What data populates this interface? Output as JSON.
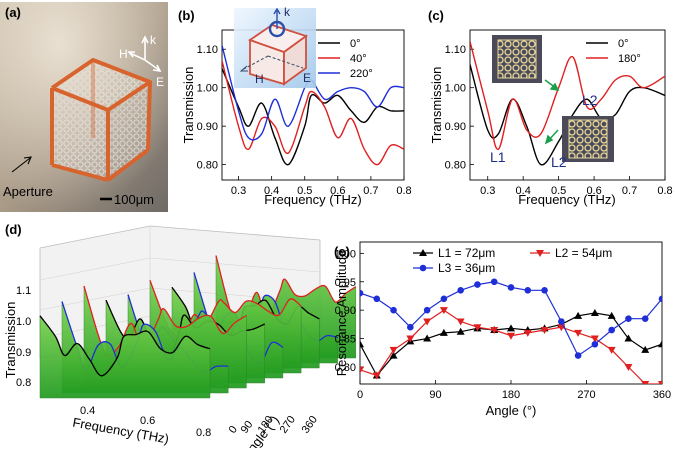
{
  "panels": {
    "a": {
      "label": "(a)",
      "axes": {
        "h": "H",
        "k": "k",
        "e": "E"
      },
      "aperture_label": "Aperture",
      "scale_bar_label": "100μm"
    },
    "d": {
      "label": "(d)",
      "zlabel": "Transmission",
      "xlabel": "Frequency (THz)",
      "ylabel": "Angle (°)",
      "z_ticks": [
        "1.1",
        "1.0",
        "0.9",
        "0.8"
      ],
      "x_ticks": [
        "0.4",
        "0.6",
        "0.8"
      ],
      "angle_ticks": [
        "0",
        "90",
        "180",
        "270",
        "360"
      ]
    }
  },
  "inset_b": {
    "h": "H",
    "k": "k",
    "e": "E"
  },
  "inset_c": {
    "l1": "L1",
    "l2": "L2",
    "l2b": "L2"
  },
  "colors": {
    "black": "#000000",
    "red": "#e02020",
    "blue": "#1f2fd8",
    "green": "#3fae2f"
  },
  "chart_data": [
    {
      "id": "b",
      "label": "(b)",
      "type": "line",
      "xlabel": "Frequency (THz)",
      "ylabel": "Transmission",
      "xlim": [
        0.25,
        0.8
      ],
      "ylim": [
        0.76,
        1.15
      ],
      "xticks": [
        "0.3",
        "0.4",
        "0.5",
        "0.6",
        "0.7",
        "0.8"
      ],
      "yticks": [
        "0.80",
        "0.90",
        "1.00",
        "1.10"
      ],
      "x": [
        0.25,
        0.3,
        0.33,
        0.37,
        0.41,
        0.45,
        0.5,
        0.52,
        0.56,
        0.6,
        0.64,
        0.68,
        0.72,
        0.76,
        0.8
      ],
      "series": [
        {
          "name": "0°",
          "color": "#000000",
          "values": [
            1.05,
            0.95,
            0.9,
            0.96,
            0.87,
            0.8,
            0.9,
            0.98,
            0.96,
            0.98,
            0.94,
            0.91,
            0.95,
            0.94,
            0.94
          ]
        },
        {
          "name": "40°",
          "color": "#e02020",
          "values": [
            1.07,
            0.9,
            0.84,
            0.92,
            0.9,
            0.83,
            0.95,
            0.99,
            0.95,
            0.87,
            0.92,
            0.84,
            0.8,
            0.85,
            0.84
          ]
        },
        {
          "name": "220°",
          "color": "#1f2fd8",
          "values": [
            1.11,
            0.94,
            0.87,
            0.88,
            0.97,
            0.9,
            1.0,
            1.02,
            0.97,
            0.99,
            1.0,
            0.99,
            0.95,
            1.0,
            1.0
          ]
        }
      ]
    },
    {
      "id": "c",
      "label": "(c)",
      "type": "line",
      "xlabel": "Frequency (THz)",
      "ylabel": "Transmission",
      "xlim": [
        0.25,
        0.8
      ],
      "ylim": [
        0.76,
        1.15
      ],
      "xticks": [
        "0.3",
        "0.4",
        "0.5",
        "0.6",
        "0.7",
        "0.8"
      ],
      "yticks": [
        "0.80",
        "0.90",
        "1.00",
        "1.10"
      ],
      "x": [
        0.25,
        0.3,
        0.33,
        0.37,
        0.41,
        0.45,
        0.5,
        0.54,
        0.58,
        0.62,
        0.66,
        0.7,
        0.74,
        0.8
      ],
      "series": [
        {
          "name": "0°",
          "color": "#000000",
          "values": [
            1.06,
            0.89,
            0.88,
            0.97,
            0.9,
            0.8,
            0.86,
            0.93,
            0.97,
            0.92,
            0.93,
            0.99,
            1.0,
            0.98
          ]
        },
        {
          "name": "180°",
          "color": "#e02020",
          "values": [
            1.12,
            0.94,
            0.84,
            0.97,
            0.89,
            0.88,
            1.0,
            1.08,
            0.95,
            0.97,
            1.02,
            1.03,
            1.0,
            1.03
          ]
        }
      ]
    },
    {
      "id": "e",
      "label": "(e)",
      "type": "line",
      "xlabel": "Angle (°)",
      "ylabel": "Resonance Amplitude",
      "xlim": [
        0,
        360
      ],
      "ylim": [
        0.77,
        1.02
      ],
      "xticks": [
        "0",
        "90",
        "180",
        "270",
        "360"
      ],
      "yticks": [
        "0.80",
        "0.85",
        "0.90",
        "0.95",
        "1.00"
      ],
      "x": [
        0,
        20,
        40,
        60,
        80,
        100,
        120,
        140,
        160,
        180,
        200,
        220,
        240,
        260,
        280,
        300,
        320,
        340,
        360
      ],
      "series": [
        {
          "name": "L1 = 72μm",
          "color": "#000000",
          "marker": "^",
          "values": [
            0.84,
            0.785,
            0.82,
            0.845,
            0.85,
            0.86,
            0.862,
            0.868,
            0.865,
            0.868,
            0.865,
            0.868,
            0.875,
            0.89,
            0.895,
            0.89,
            0.85,
            0.83,
            0.84
          ]
        },
        {
          "name": "L2 = 54μm",
          "color": "#e02020",
          "marker": "v",
          "values": [
            0.795,
            0.785,
            0.83,
            0.85,
            0.88,
            0.9,
            0.88,
            0.87,
            0.865,
            0.855,
            0.86,
            0.865,
            0.87,
            0.86,
            0.85,
            0.83,
            0.8,
            0.77,
            0.77
          ]
        },
        {
          "name": "L3 = 36μm",
          "color": "#1f2fd8",
          "marker": "o",
          "values": [
            0.93,
            0.92,
            0.9,
            0.87,
            0.9,
            0.92,
            0.935,
            0.945,
            0.95,
            0.94,
            0.935,
            0.935,
            0.88,
            0.82,
            0.84,
            0.865,
            0.885,
            0.885,
            0.92
          ]
        }
      ]
    }
  ]
}
